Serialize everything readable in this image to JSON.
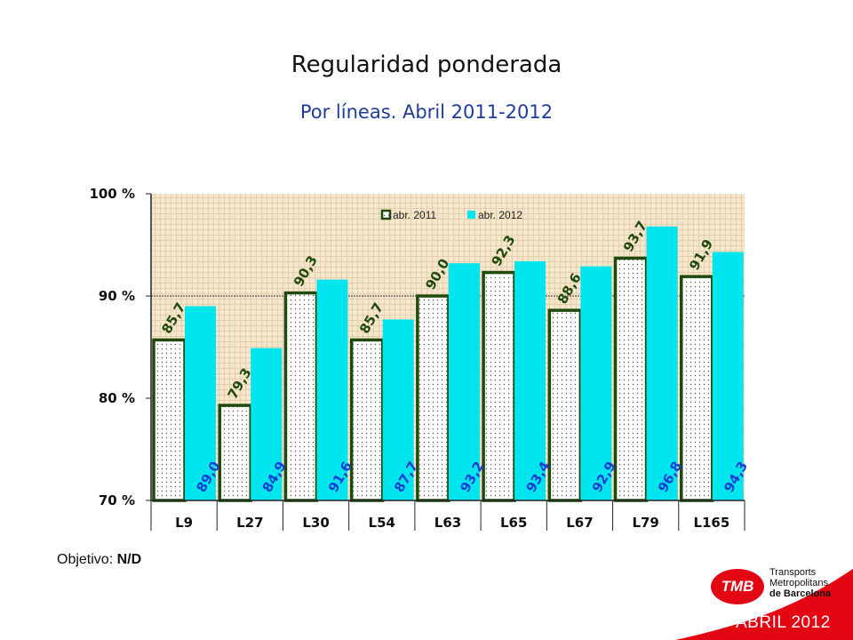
{
  "slide": {
    "title": "Regularidad ponderada",
    "subtitle": "Por líneas. Abril 2011-2012",
    "objective_label": "Objetivo: ",
    "objective_value": "N/D",
    "period": "ABRIL 2012",
    "logo": {
      "badge": "TMB",
      "line1": "Transports",
      "line2": "Metropolitans",
      "line3": "de Barcelona"
    },
    "colors": {
      "brand_red": "#e30613",
      "series_2011_border": "#1f4a0c",
      "series_2012_fill": "#00e5ee",
      "plot_bg": "#f5e6cc",
      "label_2011": "#1f4a0c",
      "label_2012": "#1a3fd6"
    }
  },
  "chart_data": {
    "type": "bar",
    "categories": [
      "L9",
      "L27",
      "L30",
      "L54",
      "L63",
      "L65",
      "L67",
      "L79",
      "L165"
    ],
    "series": [
      {
        "name": "abr. 2011",
        "values": [
          85.7,
          79.3,
          90.3,
          85.7,
          90.0,
          92.3,
          88.6,
          93.7,
          91.9
        ],
        "labels": [
          "85,7",
          "79,3",
          "90,3",
          "85,7",
          "90,0",
          "92,3",
          "88,6",
          "93,7",
          "91,9"
        ]
      },
      {
        "name": "abr. 2012",
        "values": [
          89.0,
          84.9,
          91.6,
          87.7,
          93.2,
          93.4,
          92.9,
          96.8,
          94.3
        ],
        "labels": [
          "89,0",
          "84,9",
          "91,6",
          "87,7",
          "93,2",
          "93,4",
          "92,9",
          "96,8",
          "94,3"
        ]
      }
    ],
    "y_ticks": [
      "70 %",
      "80 %",
      "90 %",
      "100 %"
    ],
    "y_tick_values": [
      70,
      80,
      90,
      100
    ],
    "ylim": [
      70,
      100
    ],
    "legend_placement": "top-center",
    "grid": false,
    "reference_line": 90
  }
}
